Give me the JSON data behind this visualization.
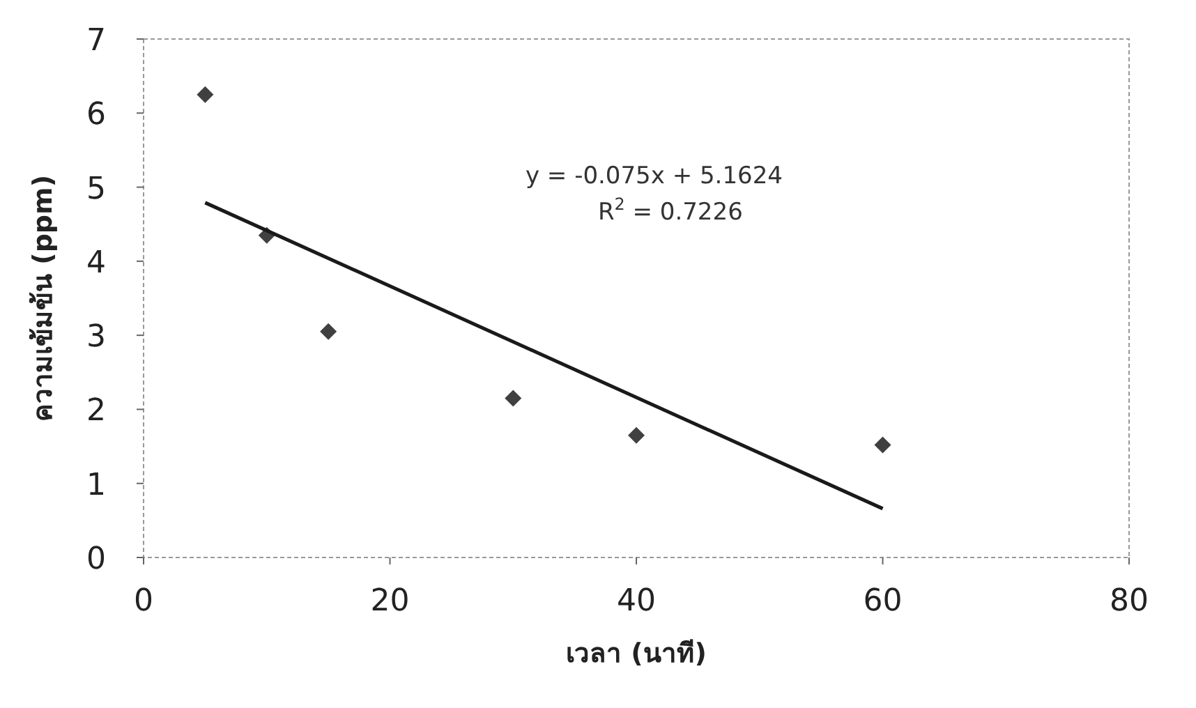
{
  "chart_data": {
    "type": "scatter",
    "xlabel": "เวลา (นาที)",
    "ylabel": "ความเข้มข้น (ppm)",
    "xlim": [
      0,
      80
    ],
    "xticks": [
      0,
      20,
      40,
      60,
      80
    ],
    "ylim": [
      0,
      7
    ],
    "yticks": [
      0,
      1,
      2,
      3,
      4,
      5,
      6,
      7
    ],
    "grid": false,
    "marker": "diamond",
    "series": [
      {
        "type": "scatter",
        "color": "#404040",
        "x": [
          5,
          10,
          15,
          30,
          40,
          60
        ],
        "values": [
          6.25,
          4.35,
          3.05,
          2.15,
          1.65,
          1.52
        ]
      },
      {
        "type": "line",
        "color": "#1a1a1a",
        "line_style": "solid",
        "marker": "none",
        "x": [
          5,
          60
        ],
        "values": [
          4.79,
          0.66
        ]
      }
    ],
    "annotations": [
      "y = -0.075x + 5.1624",
      "R$^{2}$ = 0.7226"
    ]
  }
}
